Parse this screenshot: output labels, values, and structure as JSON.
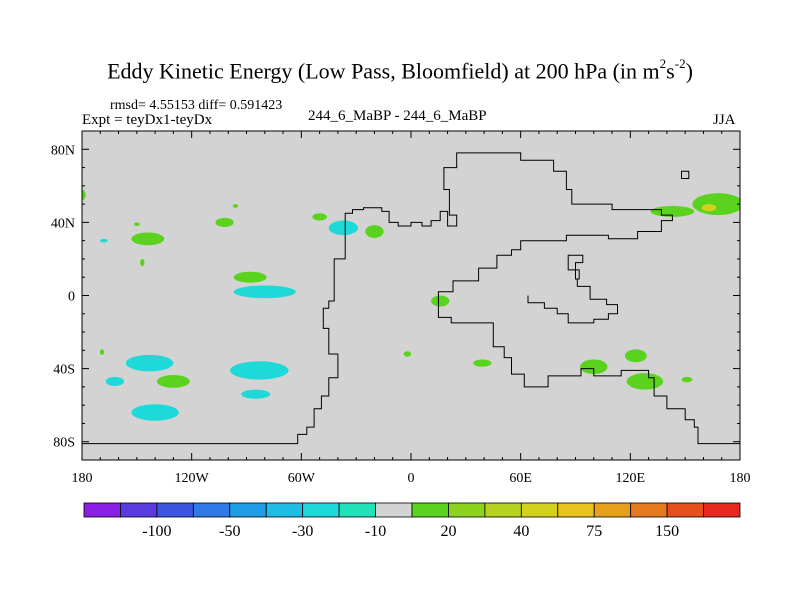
{
  "chart_data": {
    "type": "contour-map",
    "title": "Eddy Kinetic Energy (Low Pass, Bloomfield) at 200 hPa (in m",
    "title_units_sup1": "2",
    "title_units_mid": "s",
    "title_units_sup2": "-2",
    "title_units_end": ")",
    "stats_line": "rmsd= 4.55153 diff= 0.591423",
    "left_label": "Expt = teyDx1-teyDx",
    "center_label": "244_6_MaBP - 244_6_MaBP",
    "right_label": "JJA",
    "xlim": [
      -180,
      180
    ],
    "ylim": [
      -90,
      90
    ],
    "x_ticks": [
      {
        "value": -180,
        "label": "180"
      },
      {
        "value": -120,
        "label": "120W"
      },
      {
        "value": -60,
        "label": "60W"
      },
      {
        "value": 0,
        "label": "0"
      },
      {
        "value": 60,
        "label": "60E"
      },
      {
        "value": 120,
        "label": "120E"
      },
      {
        "value": 180,
        "label": "180"
      }
    ],
    "y_ticks": [
      {
        "value": 80,
        "label": "80N"
      },
      {
        "value": 40,
        "label": "40N"
      },
      {
        "value": 0,
        "label": "0"
      },
      {
        "value": -40,
        "label": "40S"
      },
      {
        "value": -80,
        "label": "80S"
      }
    ],
    "background_color": "#d3d3d3",
    "colorbar": {
      "colors": [
        "#8a1fe6",
        "#5a3be0",
        "#3a55e0",
        "#2f7ae6",
        "#1f9ee8",
        "#1fbde6",
        "#1fd8d8",
        "#22e0b8",
        "#d3d3d3",
        "#5ad21e",
        "#8cd21e",
        "#b4d21e",
        "#d2d21e",
        "#e6c31e",
        "#e6a01e",
        "#e6781e",
        "#e6501e",
        "#e6281e"
      ],
      "labels": [
        {
          "after_box": 2,
          "label": "-100"
        },
        {
          "after_box": 4,
          "label": "-50"
        },
        {
          "after_box": 6,
          "label": "-30"
        },
        {
          "after_box": 8,
          "label": "-10"
        },
        {
          "after_box": 10,
          "label": "20"
        },
        {
          "after_box": 12,
          "label": "40"
        },
        {
          "after_box": 14,
          "label": "75"
        },
        {
          "after_box": 16,
          "label": "150"
        }
      ]
    },
    "blobs": [
      {
        "lon": -180,
        "lat": 55,
        "rx": 2,
        "ry": 3,
        "color": "#5ad21e"
      },
      {
        "lon": -150,
        "lat": 39,
        "rx": 1.5,
        "ry": 1,
        "color": "#5ad21e"
      },
      {
        "lon": -168,
        "lat": 30,
        "rx": 2,
        "ry": 1,
        "color": "#1fd8d8"
      },
      {
        "lon": -144,
        "lat": 31,
        "rx": 9,
        "ry": 3.5,
        "color": "#5ad21e"
      },
      {
        "lon": -147,
        "lat": 18,
        "rx": 1.2,
        "ry": 2,
        "color": "#5ad21e"
      },
      {
        "lon": -96,
        "lat": 49,
        "rx": 1.5,
        "ry": 1,
        "color": "#5ad21e"
      },
      {
        "lon": -102,
        "lat": 40,
        "rx": 5,
        "ry": 2.5,
        "color": "#5ad21e"
      },
      {
        "lon": -50,
        "lat": 43,
        "rx": 4,
        "ry": 2,
        "color": "#5ad21e"
      },
      {
        "lon": -37,
        "lat": 37,
        "rx": 8,
        "ry": 4,
        "color": "#1fd8d8"
      },
      {
        "lon": -20,
        "lat": 35,
        "rx": 5,
        "ry": 3.5,
        "color": "#5ad21e"
      },
      {
        "lon": -88,
        "lat": 10,
        "rx": 9,
        "ry": 3,
        "color": "#5ad21e"
      },
      {
        "lon": -80,
        "lat": 2,
        "rx": 17,
        "ry": 3.5,
        "color": "#1fd8d8"
      },
      {
        "lon": 16,
        "lat": -3,
        "rx": 5,
        "ry": 3,
        "color": "#5ad21e"
      },
      {
        "lon": -169,
        "lat": -31,
        "rx": 1.2,
        "ry": 1.5,
        "color": "#5ad21e"
      },
      {
        "lon": -143,
        "lat": -37,
        "rx": 13,
        "ry": 4.5,
        "color": "#1fd8d8"
      },
      {
        "lon": -130,
        "lat": -47,
        "rx": 9,
        "ry": 3.5,
        "color": "#5ad21e"
      },
      {
        "lon": -162,
        "lat": -47,
        "rx": 5,
        "ry": 2.5,
        "color": "#1fd8d8"
      },
      {
        "lon": -140,
        "lat": -64,
        "rx": 13,
        "ry": 4.5,
        "color": "#1fd8d8"
      },
      {
        "lon": -83,
        "lat": -41,
        "rx": 16,
        "ry": 5,
        "color": "#1fd8d8"
      },
      {
        "lon": -85,
        "lat": -54,
        "rx": 8,
        "ry": 2.5,
        "color": "#1fd8d8"
      },
      {
        "lon": -2,
        "lat": -32,
        "rx": 2,
        "ry": 1.5,
        "color": "#5ad21e"
      },
      {
        "lon": 39,
        "lat": -37,
        "rx": 5,
        "ry": 2,
        "color": "#5ad21e"
      },
      {
        "lon": 100,
        "lat": -39,
        "rx": 7.5,
        "ry": 4,
        "color": "#5ad21e"
      },
      {
        "lon": 123,
        "lat": -33,
        "rx": 6,
        "ry": 3.5,
        "color": "#5ad21e"
      },
      {
        "lon": 128,
        "lat": -47,
        "rx": 10,
        "ry": 4.5,
        "color": "#5ad21e"
      },
      {
        "lon": 151,
        "lat": -46,
        "rx": 3,
        "ry": 1.5,
        "color": "#5ad21e"
      },
      {
        "lon": 168,
        "lat": 50,
        "rx": 14,
        "ry": 6,
        "color": "#5ad21e"
      },
      {
        "lon": 143,
        "lat": 46,
        "rx": 12,
        "ry": 3,
        "color": "#5ad21e"
      },
      {
        "lon": 163,
        "lat": 48,
        "rx": 4,
        "ry": 2,
        "color": "#d2d21e"
      }
    ],
    "coastlines": [
      [
        [
          -180,
          -81
        ],
        [
          -62,
          -81
        ],
        [
          -62,
          -76
        ],
        [
          -57,
          -76
        ],
        [
          -57,
          -72
        ],
        [
          -53,
          -72
        ],
        [
          -53,
          -62
        ],
        [
          -49,
          -62
        ],
        [
          -49,
          -55
        ],
        [
          -45,
          -55
        ],
        [
          -45,
          -45
        ],
        [
          -40,
          -45
        ],
        [
          -40,
          -32
        ],
        [
          -45,
          -32
        ],
        [
          -45,
          -18
        ],
        [
          -48,
          -18
        ],
        [
          -48,
          -7
        ],
        [
          -45,
          -7
        ],
        [
          -45,
          -3
        ],
        [
          -42,
          -3
        ],
        [
          -42,
          20
        ],
        [
          -36,
          20
        ],
        [
          -36,
          45
        ],
        [
          -32,
          45
        ],
        [
          -32,
          47
        ],
        [
          -26,
          47
        ],
        [
          -26,
          48
        ],
        [
          -16,
          48
        ],
        [
          -16,
          46
        ],
        [
          -12,
          46
        ],
        [
          -12,
          40
        ],
        [
          -7,
          40
        ],
        [
          -7,
          38
        ],
        [
          0,
          38
        ],
        [
          0,
          40
        ],
        [
          6,
          40
        ],
        [
          6,
          38
        ],
        [
          11,
          38
        ],
        [
          11,
          41
        ],
        [
          16,
          41
        ],
        [
          16,
          46
        ],
        [
          20,
          46
        ],
        [
          20,
          38
        ],
        [
          25,
          38
        ],
        [
          25,
          44
        ],
        [
          21,
          44
        ],
        [
          21,
          58
        ],
        [
          18,
          58
        ],
        [
          18,
          70
        ],
        [
          25,
          70
        ],
        [
          25,
          78
        ],
        [
          60,
          78
        ],
        [
          60,
          74
        ],
        [
          78,
          74
        ],
        [
          78,
          68
        ],
        [
          85,
          68
        ],
        [
          85,
          58
        ],
        [
          88,
          58
        ],
        [
          88,
          50
        ],
        [
          110,
          50
        ],
        [
          110,
          47
        ],
        [
          137,
          47
        ],
        [
          137,
          44
        ],
        [
          143,
          44
        ],
        [
          143,
          41
        ],
        [
          137,
          41
        ],
        [
          137,
          35
        ],
        [
          124,
          35
        ],
        [
          124,
          31
        ],
        [
          108,
          31
        ],
        [
          108,
          33
        ],
        [
          85,
          33
        ],
        [
          85,
          30
        ],
        [
          60,
          30
        ],
        [
          60,
          25
        ],
        [
          55,
          25
        ],
        [
          55,
          22
        ],
        [
          47,
          22
        ],
        [
          47,
          15
        ],
        [
          37,
          15
        ],
        [
          37,
          8
        ],
        [
          23,
          8
        ],
        [
          23,
          2
        ],
        [
          15,
          2
        ],
        [
          15,
          -12
        ],
        [
          22,
          -12
        ],
        [
          22,
          -15
        ],
        [
          45,
          -15
        ],
        [
          45,
          -28
        ],
        [
          51,
          -28
        ],
        [
          51,
          -34
        ],
        [
          55,
          -34
        ],
        [
          55,
          -43
        ],
        [
          62,
          -43
        ],
        [
          62,
          -50
        ],
        [
          75,
          -50
        ],
        [
          75,
          -44
        ],
        [
          85,
          -44
        ],
        [
          85,
          -44
        ],
        [
          93,
          -44
        ],
        [
          93,
          -40
        ],
        [
          100,
          -40
        ],
        [
          100,
          -44
        ],
        [
          115,
          -44
        ],
        [
          115,
          -41
        ],
        [
          130,
          -41
        ],
        [
          130,
          -45
        ],
        [
          133,
          -45
        ],
        [
          133,
          -55
        ],
        [
          140,
          -55
        ],
        [
          140,
          -62
        ],
        [
          150,
          -62
        ],
        [
          150,
          -68
        ],
        [
          155,
          -68
        ],
        [
          155,
          -72
        ],
        [
          157,
          -72
        ],
        [
          157,
          -81
        ],
        [
          180,
          -81
        ]
      ],
      [
        [
          64,
          0
        ],
        [
          64,
          -4
        ],
        [
          73,
          -4
        ],
        [
          73,
          -7
        ],
        [
          80,
          -7
        ],
        [
          80,
          -10
        ],
        [
          86,
          -10
        ],
        [
          86,
          -15
        ],
        [
          100,
          -15
        ],
        [
          100,
          -13
        ],
        [
          108,
          -13
        ],
        [
          108,
          -10
        ],
        [
          113,
          -10
        ],
        [
          113,
          -5
        ],
        [
          107,
          -5
        ],
        [
          107,
          -2
        ],
        [
          98,
          -2
        ],
        [
          98,
          5
        ],
        [
          91,
          5
        ],
        [
          91,
          9
        ],
        [
          90,
          9
        ],
        [
          90,
          18
        ],
        [
          94,
          18
        ],
        [
          94,
          22
        ],
        [
          86,
          22
        ],
        [
          86,
          14
        ],
        [
          92,
          14
        ],
        [
          92,
          9
        ],
        [
          90,
          9
        ]
      ],
      [
        [
          148,
          64
        ],
        [
          152,
          64
        ],
        [
          152,
          68
        ],
        [
          148,
          68
        ],
        [
          148,
          64
        ]
      ]
    ]
  }
}
